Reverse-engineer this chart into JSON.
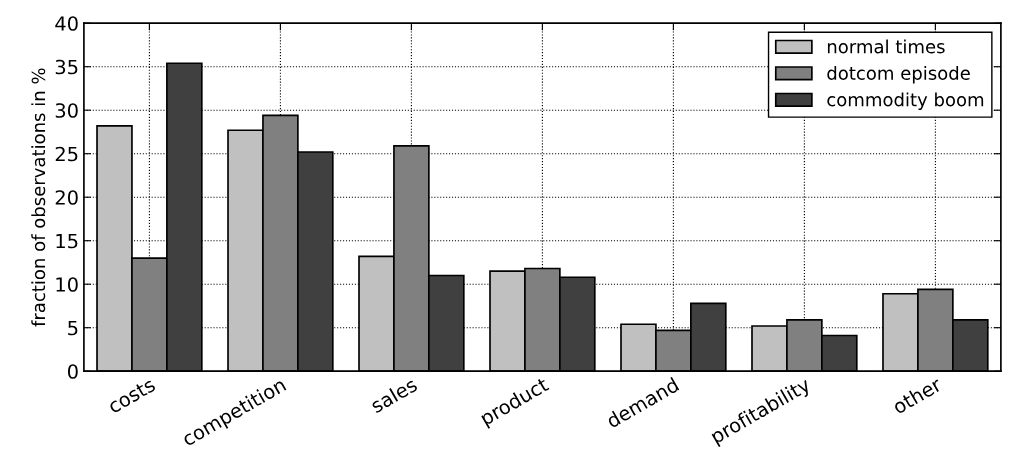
{
  "chart_data": {
    "type": "bar",
    "ylabel": "fraction of observations in %",
    "categories": [
      "costs",
      "competition",
      "sales",
      "product",
      "demand",
      "profitability",
      "other"
    ],
    "series": [
      {
        "name": "normal times",
        "color": "#c0c0c0",
        "values": [
          28.2,
          27.7,
          13.2,
          11.5,
          5.4,
          5.2,
          8.9
        ]
      },
      {
        "name": "dotcom episode",
        "color": "#808080",
        "values": [
          13.0,
          29.4,
          25.9,
          11.8,
          4.7,
          5.9,
          9.4
        ]
      },
      {
        "name": "commodity boom",
        "color": "#404040",
        "values": [
          35.4,
          25.2,
          11.0,
          10.8,
          7.8,
          4.1,
          5.9
        ]
      }
    ],
    "ylim": [
      0,
      40
    ],
    "yticks": [
      0,
      5,
      10,
      15,
      20,
      25,
      30,
      35,
      40
    ],
    "grid": true,
    "legend": "top right",
    "line_style": "dotted"
  }
}
